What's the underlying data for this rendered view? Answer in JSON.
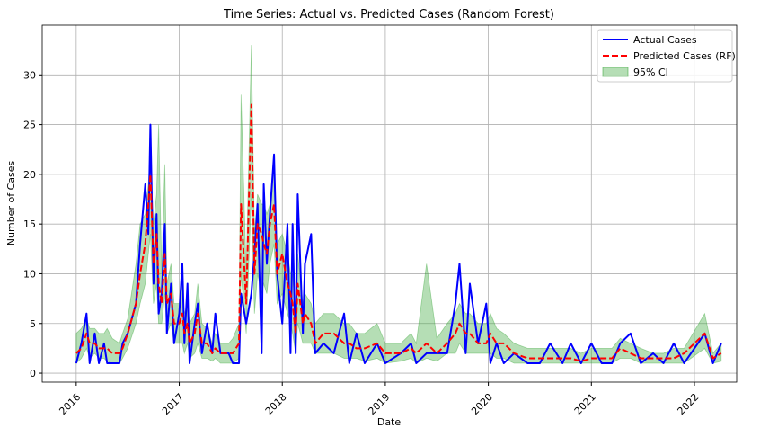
{
  "chart_data": {
    "type": "line",
    "title": "Time Series: Actual vs. Predicted Cases (Random Forest)",
    "xlabel": "Date",
    "ylabel": "Number of Cases",
    "xlim": [
      2015.67,
      2022.41
    ],
    "xticks": [
      2016,
      2017,
      2018,
      2019,
      2020,
      2021,
      2022
    ],
    "ylim": [
      -0.9,
      35
    ],
    "yticks": [
      0,
      5,
      10,
      15,
      20,
      25,
      30
    ],
    "grid": true,
    "legend": "upper right",
    "x": [
      2016.0,
      2016.05,
      2016.1,
      2016.13,
      2016.18,
      2016.22,
      2016.27,
      2016.3,
      2016.35,
      2016.42,
      2016.45,
      2016.5,
      2016.58,
      2016.62,
      2016.67,
      2016.7,
      2016.72,
      2016.75,
      2016.78,
      2016.8,
      2016.83,
      2016.86,
      2016.88,
      2016.92,
      2016.95,
      2017.0,
      2017.03,
      2017.05,
      2017.08,
      2017.1,
      2017.15,
      2017.18,
      2017.22,
      2017.27,
      2017.32,
      2017.35,
      2017.4,
      2017.48,
      2017.52,
      2017.58,
      2017.6,
      2017.65,
      2017.7,
      2017.73,
      2017.76,
      2017.8,
      2017.82,
      2017.85,
      2017.88,
      2017.92,
      2017.95,
      2018.0,
      2018.05,
      2018.08,
      2018.1,
      2018.13,
      2018.15,
      2018.2,
      2018.22,
      2018.28,
      2018.32,
      2018.4,
      2018.5,
      2018.6,
      2018.65,
      2018.72,
      2018.8,
      2018.92,
      2019.0,
      2019.15,
      2019.25,
      2019.3,
      2019.4,
      2019.5,
      2019.6,
      2019.68,
      2019.72,
      2019.78,
      2019.82,
      2019.9,
      2019.98,
      2020.02,
      2020.08,
      2020.15,
      2020.25,
      2020.38,
      2020.5,
      2020.6,
      2020.72,
      2020.8,
      2020.9,
      2021.0,
      2021.1,
      2021.2,
      2021.28,
      2021.38,
      2021.48,
      2021.6,
      2021.7,
      2021.8,
      2021.9,
      2022.1,
      2022.18,
      2022.26
    ],
    "series": [
      {
        "name": "Actual Cases",
        "color": "#0000ff",
        "style": "solid",
        "values": [
          1,
          3,
          6,
          1,
          4,
          1,
          3,
          1,
          1,
          1,
          3,
          4,
          7,
          13,
          19,
          14,
          25,
          9,
          16,
          6,
          8,
          15,
          4,
          9,
          3,
          6,
          11,
          3,
          9,
          1,
          5,
          7,
          2,
          5,
          2,
          6,
          2,
          2,
          1,
          1,
          8,
          5,
          8,
          12,
          17,
          2,
          19,
          11,
          16,
          22,
          10,
          5,
          15,
          2,
          15,
          2,
          18,
          4,
          11,
          14,
          2,
          3,
          2,
          6,
          1,
          4,
          1,
          3,
          1,
          2,
          3,
          1,
          2,
          2,
          2,
          7,
          11,
          2,
          9,
          3,
          7,
          1,
          3,
          1,
          2,
          1,
          1,
          3,
          1,
          3,
          1,
          3,
          1,
          1,
          3,
          4,
          1,
          2,
          1,
          3,
          1,
          4,
          1,
          3
        ]
      },
      {
        "name": "Predicted Cases (RF)",
        "color": "#ff0000",
        "style": "dashed",
        "values": [
          2,
          2.5,
          4,
          3,
          3,
          2.5,
          2.5,
          2.5,
          2,
          2,
          2.5,
          4,
          7,
          10,
          13,
          17,
          20,
          11,
          14,
          9,
          7,
          12,
          7,
          8,
          5,
          5,
          6,
          4,
          5,
          3,
          4,
          6,
          3,
          3,
          2,
          2.5,
          2,
          2,
          2,
          3,
          17,
          7,
          27,
          10,
          15,
          14,
          13,
          12,
          15,
          17,
          10,
          12,
          9,
          8,
          7,
          4,
          9,
          5,
          6,
          5,
          3,
          4,
          4,
          3,
          3,
          2.5,
          2.5,
          3,
          2,
          2,
          2.5,
          2,
          3,
          2,
          3,
          4,
          5,
          4,
          4,
          3,
          3,
          4,
          3,
          3,
          2,
          1.5,
          1.5,
          1.5,
          1.5,
          1.5,
          1.2,
          1.5,
          1.5,
          1.5,
          2.5,
          2,
          1.5,
          1.5,
          1.5,
          1.5,
          2,
          4,
          1.5,
          2
        ]
      }
    ],
    "band": {
      "name": "95% CI",
      "color": "#2ca02c",
      "lower": [
        1,
        1.5,
        2.5,
        1.5,
        2,
        1.5,
        1.5,
        1.2,
        1,
        1,
        1.5,
        2.5,
        5,
        7,
        9,
        12,
        14,
        7,
        9,
        5,
        5,
        8,
        4,
        5,
        3,
        3,
        3,
        2,
        3,
        1.5,
        2,
        3,
        1.5,
        1.5,
        1.2,
        1.5,
        1,
        1,
        1,
        1.5,
        10,
        4,
        18,
        6,
        10,
        8,
        9,
        8,
        11,
        13,
        7,
        8,
        6,
        5,
        4,
        2,
        5,
        3,
        3,
        3,
        2,
        2,
        2,
        1.5,
        1.5,
        1.5,
        1.2,
        1.5,
        1,
        1.2,
        1.5,
        1,
        1.5,
        1.2,
        2,
        2,
        3,
        2,
        2,
        2,
        2,
        2,
        1.5,
        1.5,
        1,
        1,
        1,
        1,
        1,
        1,
        1,
        1,
        1,
        1,
        1.5,
        1.5,
        1,
        1,
        1,
        1,
        1,
        2.5,
        1,
        1.2
      ],
      "upper": [
        4,
        4.5,
        5.5,
        4.5,
        4.5,
        4,
        4,
        4.5,
        3.5,
        3,
        4,
        5.5,
        11,
        15,
        16,
        19,
        22,
        15,
        18,
        25,
        10,
        21,
        9,
        11,
        7,
        7,
        9,
        6,
        7,
        5,
        6,
        9,
        5,
        4.5,
        3,
        4,
        3,
        3,
        3.5,
        5,
        28,
        10,
        33,
        14,
        18,
        17,
        17,
        16,
        17,
        22,
        13,
        14,
        12,
        10,
        10,
        6,
        12,
        7,
        8,
        7,
        5,
        6,
        6,
        5,
        5,
        4,
        4,
        5,
        3,
        3,
        4,
        3,
        11,
        3.5,
        5,
        6,
        7,
        6,
        6,
        5,
        5,
        6,
        4.5,
        4,
        3,
        2.5,
        2.5,
        2.5,
        2.5,
        2.5,
        2,
        2.5,
        2.5,
        2.5,
        3.5,
        3,
        2.5,
        2,
        2,
        2.5,
        2.5,
        6,
        2,
        3
      ]
    }
  }
}
